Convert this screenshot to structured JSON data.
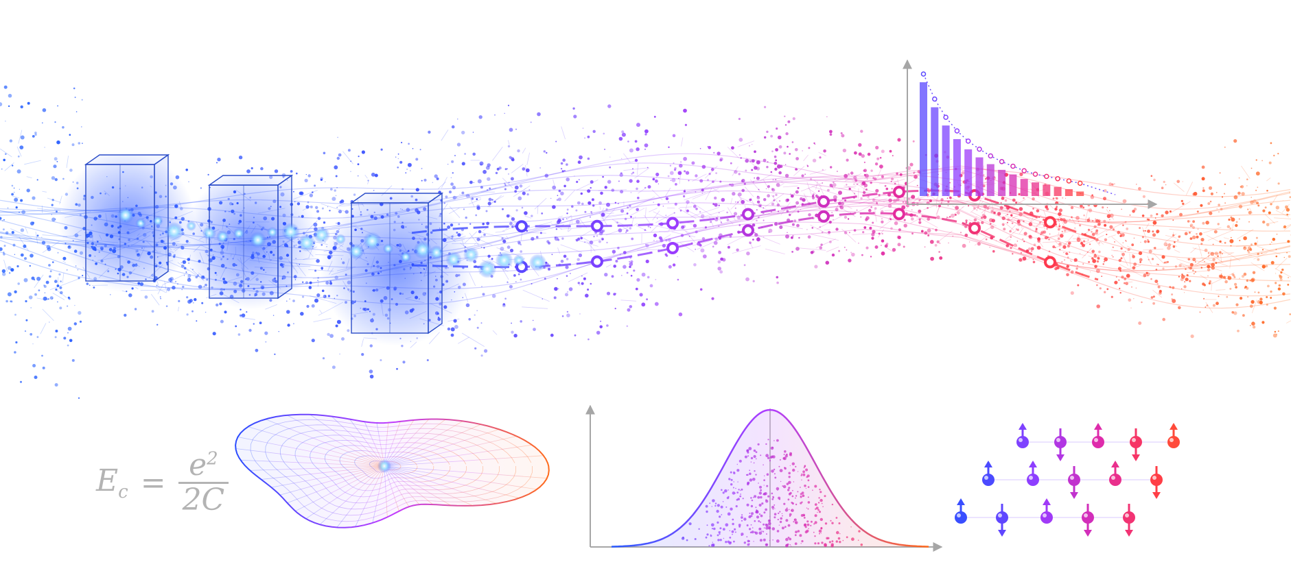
{
  "palette": {
    "blue": "#2a5cff",
    "violet": "#8a3cff",
    "magenta": "#e02aa8",
    "red": "#ff3a4a",
    "orange": "#ff6a1a",
    "axis": "#a6a6a6",
    "formula": "#b3b3b3"
  },
  "formula": {
    "lhs_symbol": "E",
    "lhs_subscript": "c",
    "equals": "=",
    "numerator_base": "e",
    "numerator_exponent": "2",
    "denominator": "2C"
  },
  "elements": {
    "particle_stream": "particle-network-wave",
    "crystal_boxes": 3,
    "mesh_shape": "wireframe-blob",
    "spin_lattice": "spin-arrows-grid"
  },
  "chart_data": [
    {
      "type": "bar",
      "description_kind": "decaying bars with dotted overlay",
      "values": [
        1.0,
        0.78,
        0.62,
        0.5,
        0.41,
        0.34,
        0.28,
        0.23,
        0.19,
        0.15,
        0.12,
        0.1,
        0.08,
        0.06,
        0.04
      ],
      "title": "",
      "xlabel": "",
      "ylabel": ""
    },
    {
      "type": "area",
      "description_kind": "bell curve with scattered dots",
      "mean": 0,
      "sigma": 1,
      "xlim": [
        -3.5,
        3.5
      ],
      "title": "",
      "xlabel": "",
      "ylabel": ""
    }
  ]
}
